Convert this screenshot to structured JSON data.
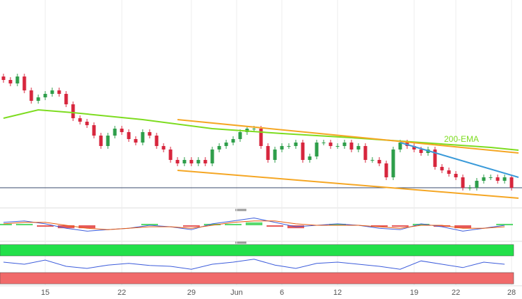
{
  "chart_data": {
    "type": "candlestick",
    "xlim": [
      -0.5,
      74.5
    ],
    "ylim": [
      0,
      150
    ],
    "up_color": "#2e9e4a",
    "down_color": "#d7263d",
    "open": [
      95,
      92.5,
      90,
      95,
      85,
      77.5,
      80,
      82.5,
      85,
      82.5,
      75,
      65,
      62.5,
      60,
      52.5,
      45,
      52.5,
      57.5,
      55,
      50,
      47.5,
      55,
      52.5,
      45,
      42.5,
      35,
      32.5,
      35,
      32.5,
      35,
      32.5,
      42.5,
      45,
      47.5,
      50,
      55,
      57.5,
      57.5,
      45,
      35,
      42.5,
      45,
      45,
      47.5,
      35,
      37.5,
      47.5,
      47.5,
      45,
      45,
      47.5,
      42.5,
      45,
      35,
      35,
      32.5,
      22.5,
      42.5,
      47.5,
      45,
      42.5,
      40,
      42.5,
      30,
      27.5,
      25,
      22.5,
      15,
      15,
      20,
      22.5,
      22.5,
      20,
      22.5
    ],
    "high": [
      97,
      94.5,
      97,
      97,
      87,
      82,
      84.5,
      87,
      87,
      84.5,
      77,
      67,
      64.5,
      62,
      54.5,
      54.5,
      59.5,
      59.5,
      57,
      52,
      57,
      57,
      54.5,
      47,
      44.5,
      37,
      37,
      37,
      37,
      37,
      44.5,
      47,
      49.5,
      52,
      57,
      59.5,
      59.5,
      59.5,
      47,
      44.5,
      47,
      47,
      49.5,
      49.5,
      39.5,
      49.5,
      49.5,
      49.5,
      47,
      49.5,
      49.5,
      47,
      47,
      37,
      37,
      34.5,
      44.5,
      49.5,
      49.5,
      47,
      44.5,
      44.5,
      44.5,
      32,
      29.5,
      27,
      24.5,
      17,
      22,
      24.5,
      24.5,
      24.5,
      24.5,
      24.5
    ],
    "low": [
      90.5,
      88,
      88,
      83,
      75.5,
      75.5,
      78,
      80.5,
      80.5,
      73,
      63,
      60.5,
      58,
      50.5,
      43,
      43,
      50.5,
      53,
      48,
      45.5,
      45.5,
      50.5,
      43,
      40.5,
      33,
      30.5,
      30.5,
      30.5,
      30.5,
      30.5,
      30.5,
      40.5,
      43,
      45.5,
      48,
      53,
      55.5,
      43,
      33,
      33,
      40.5,
      43,
      43,
      33,
      33,
      35.5,
      45.5,
      43,
      43,
      43,
      40.5,
      40.5,
      33,
      33,
      30.5,
      20.5,
      20.5,
      40.5,
      43,
      40.5,
      38,
      38,
      28,
      25.5,
      23,
      20.5,
      13,
      13,
      13,
      18,
      20.5,
      18,
      18,
      13
    ],
    "close": [
      92.5,
      90,
      95,
      85,
      77.5,
      80,
      82.5,
      85,
      82.5,
      75,
      65,
      62.5,
      60,
      52.5,
      45,
      52.5,
      57.5,
      55,
      50,
      47.5,
      55,
      52.5,
      45,
      42.5,
      35,
      32.5,
      35,
      32.5,
      35,
      32.5,
      42.5,
      45,
      47.5,
      50,
      55,
      57.5,
      57.5,
      45,
      35,
      42.5,
      45,
      45,
      47.5,
      35,
      37.5,
      47.5,
      47.5,
      45,
      45,
      47.5,
      42.5,
      45,
      35,
      35,
      32.5,
      22.5,
      42.5,
      47.5,
      45,
      42.5,
      40,
      42.5,
      30,
      27.5,
      25,
      22.5,
      15,
      15,
      20,
      22.5,
      22.5,
      20,
      22.5,
      15
    ],
    "ema": {
      "label": "200-EMA",
      "color": "#7ddc1f",
      "x": [
        0,
        5,
        10,
        20,
        30,
        40,
        50,
        60,
        70,
        74
      ],
      "values": [
        65,
        71,
        69,
        64,
        57.5,
        54,
        51,
        47.5,
        44,
        42
      ]
    },
    "trendlines": [
      {
        "color": "#f5a623",
        "x": [
          25,
          74
        ],
        "values": [
          64,
          40
        ]
      },
      {
        "color": "#f5a623",
        "x": [
          25,
          74
        ],
        "values": [
          27.5,
          7.5
        ]
      },
      {
        "color": "#3a9ad9",
        "x": [
          57,
          74
        ],
        "values": [
          47.5,
          22.5
        ]
      }
    ],
    "hline": {
      "value": 15,
      "color": "#3a4a6b"
    },
    "xticks": [
      {
        "value": 6,
        "label": "15"
      },
      {
        "value": 17,
        "label": "22"
      },
      {
        "value": 27,
        "label": "29"
      },
      {
        "value": 33.5,
        "label": "Jun"
      },
      {
        "value": 40,
        "label": "6"
      },
      {
        "value": 48,
        "label": "12"
      },
      {
        "value": 59,
        "label": "19"
      },
      {
        "value": 65,
        "label": "22"
      },
      {
        "value": 73,
        "label": "28"
      }
    ],
    "macd": {
      "ylim": [
        -10,
        10
      ],
      "x": [
        0,
        3,
        6,
        9,
        12,
        15,
        18,
        21,
        24,
        27,
        30,
        33,
        36,
        39,
        42,
        45,
        48,
        51,
        54,
        57,
        60,
        63,
        66,
        69,
        72
      ],
      "macd": [
        2,
        3,
        1,
        -2,
        -4,
        -3,
        -2,
        0,
        -1,
        -3,
        1,
        3,
        5,
        2,
        -1,
        0,
        1,
        0,
        -2,
        -3,
        1,
        -1,
        -4,
        -2,
        0
      ],
      "signal": [
        1,
        2,
        2,
        0,
        -2,
        -3,
        -2,
        -1,
        -1,
        -2,
        0,
        2,
        3,
        3,
        1,
        0,
        0,
        0,
        -1,
        -2,
        0,
        0,
        -2,
        -2,
        -1
      ],
      "hist": [
        1,
        1,
        -1,
        -2,
        -2,
        0,
        0,
        1,
        0,
        -1,
        1,
        1,
        2,
        -1,
        -2,
        0,
        1,
        0,
        -1,
        -1,
        1,
        -1,
        -2,
        0,
        1
      ],
      "macd_color": "#3b5bdb",
      "signal_color": "#e8590c",
      "pos_color": "#2fd14a",
      "neg_color": "#e03131"
    },
    "rsi": {
      "ylim": [
        0,
        100
      ],
      "x": [
        0,
        3,
        6,
        9,
        12,
        15,
        18,
        21,
        24,
        27,
        30,
        33,
        36,
        39,
        42,
        45,
        48,
        51,
        54,
        57,
        60,
        63,
        66,
        69,
        72
      ],
      "values": [
        55,
        50,
        60,
        45,
        40,
        48,
        52,
        47,
        45,
        38,
        50,
        55,
        62,
        48,
        40,
        52,
        55,
        50,
        45,
        38,
        58,
        50,
        42,
        55,
        50
      ],
      "color": "#3b5bdb",
      "bands": [
        {
          "range": [
            70,
            97
          ],
          "color": "#22e04a"
        },
        {
          "range": [
            3,
            30
          ],
          "color": "#f06a6a"
        }
      ]
    }
  }
}
